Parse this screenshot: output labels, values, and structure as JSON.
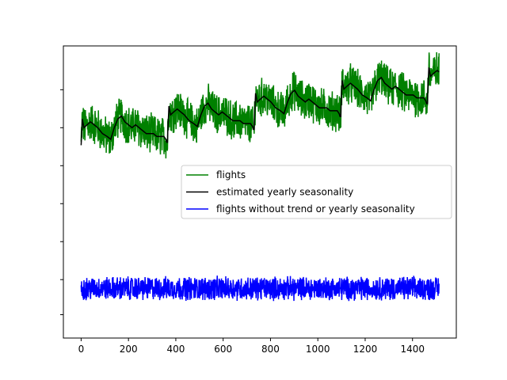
{
  "chart_data": {
    "type": "line",
    "title": "",
    "xlabel": "",
    "ylabel": "",
    "xlim": [
      -75,
      1585
    ],
    "ylim": [
      0,
      1
    ],
    "x_ticks": [
      0,
      200,
      400,
      600,
      800,
      1000,
      1200,
      1400
    ],
    "x_tick_labels": [
      "0",
      "200",
      "400",
      "600",
      "800",
      "1000",
      "1200",
      "1400"
    ],
    "y_ticks": [
      0.08,
      0.2,
      0.33,
      0.46,
      0.59,
      0.72,
      0.85
    ],
    "y_tick_labels_visible": false,
    "grid": false,
    "legend_location": "center-right",
    "colors": {
      "flights": "#008000",
      "estimated_yearly_seasonality": "#000000",
      "flights_without_trend_or_yearly_seasonality": "#0000ff"
    },
    "series": [
      {
        "name": "flights",
        "color": "#008000",
        "x_range": [
          0,
          1512
        ],
        "seasonality_period": 366,
        "trend_start": 0.58,
        "trend_slope_per_period": 0.044,
        "noise_amplitude": 0.06
      },
      {
        "name": "estimated yearly seasonality",
        "color": "#000000",
        "seasonal_shape_x": [
          0,
          5,
          12,
          25,
          40,
          55,
          70,
          90,
          110,
          125,
          140,
          155,
          170,
          185,
          200,
          215,
          230,
          245,
          260,
          275,
          290,
          305,
          320,
          335,
          350,
          358,
          362
        ],
        "seasonal_shape_y": [
          0.66,
          0.75,
          0.72,
          0.73,
          0.74,
          0.73,
          0.72,
          0.7,
          0.69,
          0.68,
          0.72,
          0.75,
          0.76,
          0.74,
          0.73,
          0.72,
          0.73,
          0.72,
          0.71,
          0.7,
          0.7,
          0.7,
          0.69,
          0.69,
          0.69,
          0.68,
          0.67
        ],
        "trend_start": 0.0,
        "trend_slope_per_period": 0.044
      },
      {
        "name": "flights without trend or yearly seasonality",
        "color": "#0000ff",
        "x_range": [
          0,
          1512
        ],
        "baseline": 0.17,
        "noise_amplitude": 0.035
      }
    ]
  }
}
